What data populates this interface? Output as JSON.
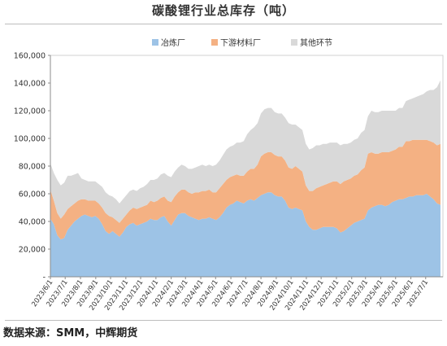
{
  "chart_data": {
    "type": "area",
    "stacked": true,
    "title": "碳酸锂行业总库存（吨）",
    "xlabel": "",
    "ylabel": "",
    "ylim": [
      0,
      160000
    ],
    "y_ticks": [
      0,
      20000,
      40000,
      60000,
      80000,
      100000,
      120000,
      140000,
      160000
    ],
    "y_tick_labels": [
      "-",
      "20,000",
      "40,000",
      "60,000",
      "80,000",
      "100,000",
      "120,000",
      "140,000",
      "160,000"
    ],
    "x_tick_labels": [
      "2023/6/1",
      "2023/7/1",
      "2023/8/1",
      "2023/9/1",
      "2023/10/1",
      "2023/11/1",
      "2023/12/1",
      "2024/1/1",
      "2024/2/1",
      "2024/3/1",
      "2024/4/1",
      "2024/5/1",
      "2024/6/1",
      "2024/7/1",
      "2024/8/1",
      "2024/9/1",
      "2024/10/1",
      "2024/11/1",
      "2024/12/1",
      "2025/1/1",
      "2025/2/1",
      "2025/3/1",
      "2025/4/1",
      "2025/5/1",
      "2025/6/1",
      "2025/7/1"
    ],
    "x": [
      "2023-06-01",
      "2023-06-08",
      "2023-06-15",
      "2023-06-22",
      "2023-06-29",
      "2023-07-06",
      "2023-07-13",
      "2023-07-20",
      "2023-07-27",
      "2023-08-03",
      "2023-08-10",
      "2023-08-17",
      "2023-08-24",
      "2023-08-31",
      "2023-09-07",
      "2023-09-14",
      "2023-09-21",
      "2023-09-28",
      "2023-10-05",
      "2023-10-12",
      "2023-10-19",
      "2023-10-26",
      "2023-11-02",
      "2023-11-09",
      "2023-11-16",
      "2023-11-23",
      "2023-11-30",
      "2023-12-07",
      "2023-12-14",
      "2023-12-21",
      "2023-12-28",
      "2024-01-04",
      "2024-01-11",
      "2024-01-18",
      "2024-01-25",
      "2024-02-01",
      "2024-02-08",
      "2024-02-15",
      "2024-02-22",
      "2024-02-29",
      "2024-03-07",
      "2024-03-14",
      "2024-03-21",
      "2024-03-28",
      "2024-04-04",
      "2024-04-11",
      "2024-04-18",
      "2024-04-25",
      "2024-05-02",
      "2024-05-09",
      "2024-05-16",
      "2024-05-23",
      "2024-05-30",
      "2024-06-06",
      "2024-06-13",
      "2024-06-20",
      "2024-06-27",
      "2024-07-04",
      "2024-07-11",
      "2024-07-18",
      "2024-07-25",
      "2024-08-01",
      "2024-08-08",
      "2024-08-15",
      "2024-08-22",
      "2024-08-29",
      "2024-09-05",
      "2024-09-12",
      "2024-09-19",
      "2024-09-26",
      "2024-10-03",
      "2024-10-10",
      "2024-10-17",
      "2024-10-24",
      "2024-10-31",
      "2024-11-07",
      "2024-11-14",
      "2024-11-21",
      "2024-11-28",
      "2024-12-05",
      "2024-12-12",
      "2024-12-19",
      "2024-12-26",
      "2025-01-02",
      "2025-01-09",
      "2025-01-16",
      "2025-01-23",
      "2025-01-30",
      "2025-02-06",
      "2025-02-13",
      "2025-02-20",
      "2025-02-27",
      "2025-03-06",
      "2025-03-13",
      "2025-03-20",
      "2025-03-27",
      "2025-04-03",
      "2025-04-10",
      "2025-04-17",
      "2025-04-24",
      "2025-05-01",
      "2025-05-08",
      "2025-05-15",
      "2025-05-22",
      "2025-05-29",
      "2025-06-05",
      "2025-06-12",
      "2025-06-19",
      "2025-06-26",
      "2025-07-03",
      "2025-07-10",
      "2025-07-17",
      "2025-07-24",
      "2025-07-31"
    ],
    "series": [
      {
        "name": "冶炼厂",
        "color": "#9dc3e6",
        "values": [
          42000,
          38000,
          30000,
          27000,
          28000,
          34000,
          37000,
          40000,
          42000,
          44000,
          45000,
          44000,
          43000,
          44000,
          42000,
          38000,
          33000,
          31000,
          33000,
          31000,
          29000,
          32000,
          36000,
          38000,
          39000,
          37000,
          38000,
          39000,
          40000,
          42000,
          41000,
          41000,
          43000,
          44000,
          40000,
          37000,
          41000,
          45000,
          46000,
          46000,
          44000,
          43000,
          42000,
          41000,
          42000,
          42000,
          43000,
          42000,
          41000,
          43000,
          46000,
          50000,
          52000,
          53000,
          55000,
          54000,
          53000,
          55000,
          56000,
          55000,
          57000,
          59000,
          60000,
          61000,
          61000,
          59000,
          58000,
          58000,
          55000,
          50000,
          49000,
          50000,
          49000,
          48000,
          40000,
          36000,
          34000,
          34000,
          35000,
          36000,
          36000,
          36000,
          36000,
          35000,
          32000,
          33000,
          35000,
          37000,
          39000,
          40000,
          41000,
          42000,
          48000,
          50000,
          51000,
          52000,
          52000,
          51000,
          52000,
          54000,
          55000,
          56000,
          56000,
          57000,
          58000,
          58000,
          59000,
          59000,
          59000,
          60000,
          58000,
          56000,
          53000,
          52000
        ]
      },
      {
        "name": "下游材料厂",
        "color": "#f4b183",
        "values": [
          21000,
          17000,
          16000,
          15000,
          17000,
          15000,
          14000,
          13000,
          13000,
          12000,
          11000,
          11000,
          12000,
          11000,
          11000,
          12000,
          13000,
          13000,
          10000,
          10000,
          10000,
          10000,
          9000,
          10000,
          11000,
          12000,
          12000,
          12000,
          12000,
          13000,
          13000,
          14000,
          14000,
          14000,
          15000,
          17000,
          17000,
          16000,
          17000,
          17000,
          17000,
          17000,
          19000,
          20000,
          20000,
          20000,
          20000,
          19000,
          20000,
          21000,
          21000,
          20000,
          20000,
          20000,
          19000,
          19000,
          20000,
          21000,
          22000,
          23000,
          24000,
          28000,
          29000,
          29000,
          29000,
          29000,
          29000,
          29000,
          29000,
          29000,
          29000,
          30000,
          29000,
          28000,
          26000,
          26000,
          28000,
          30000,
          30000,
          30000,
          31000,
          32000,
          33000,
          34000,
          35000,
          36000,
          35000,
          34000,
          34000,
          34000,
          36000,
          37000,
          41000,
          40000,
          38000,
          37000,
          38000,
          39000,
          38000,
          37000,
          37000,
          38000,
          38000,
          41000,
          40000,
          41000,
          40000,
          40000,
          40000,
          39000,
          40000,
          41000,
          42000,
          44000
        ]
      },
      {
        "name": "其他环节",
        "color": "#d9d9d9",
        "values": [
          19000,
          20000,
          24000,
          24000,
          23000,
          24000,
          22000,
          21000,
          20000,
          15000,
          14000,
          14000,
          14000,
          14000,
          14000,
          15000,
          15000,
          15000,
          15000,
          15000,
          14000,
          14000,
          14000,
          14000,
          13000,
          13000,
          14000,
          14000,
          15000,
          15000,
          16000,
          16000,
          17000,
          17000,
          18000,
          18000,
          18000,
          18000,
          18000,
          17000,
          17000,
          18000,
          18000,
          19000,
          19000,
          18000,
          18000,
          19000,
          20000,
          20000,
          21000,
          22000,
          22000,
          22000,
          23000,
          24000,
          25000,
          27000,
          28000,
          30000,
          30000,
          31000,
          32000,
          32000,
          32000,
          31000,
          31000,
          31000,
          31000,
          32000,
          32000,
          30000,
          30000,
          30000,
          30000,
          30000,
          31000,
          31000,
          30000,
          30000,
          29000,
          29000,
          28000,
          28000,
          28000,
          27000,
          26000,
          26000,
          26000,
          26000,
          27000,
          27000,
          27000,
          30000,
          30000,
          30000,
          30000,
          30000,
          30000,
          29000,
          28000,
          28000,
          28000,
          29000,
          30000,
          30000,
          31000,
          32000,
          33000,
          35000,
          37000,
          38000,
          42000,
          46000
        ]
      }
    ],
    "legend_position": "top-center",
    "grid": false
  },
  "source_text": "数据来源：SMM，中辉期货"
}
